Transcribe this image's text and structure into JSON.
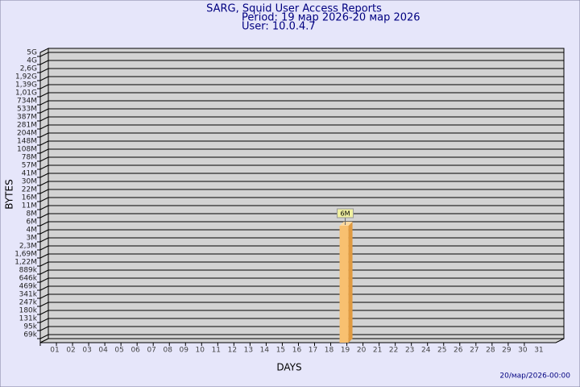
{
  "chart_data": {
    "type": "bar",
    "title": "SARG, Squid User Access Reports",
    "subtitle": [
      "Period: 19 мар 2026-20 мар 2026",
      "User: 10.0.4.7"
    ],
    "y_label": "BYTES",
    "x_label": "DAYS",
    "footer": "20/мар/2026-00:00",
    "categories": [
      "01",
      "02",
      "03",
      "04",
      "05",
      "06",
      "07",
      "08",
      "09",
      "10",
      "11",
      "12",
      "13",
      "14",
      "15",
      "16",
      "17",
      "18",
      "19",
      "20",
      "21",
      "22",
      "23",
      "24",
      "25",
      "26",
      "27",
      "28",
      "29",
      "30",
      "31"
    ],
    "values": [
      null,
      null,
      null,
      null,
      null,
      null,
      null,
      null,
      null,
      null,
      null,
      null,
      null,
      null,
      null,
      null,
      null,
      null,
      6000000,
      null,
      null,
      null,
      null,
      null,
      null,
      null,
      null,
      null,
      null,
      null,
      null
    ],
    "value_labels": [
      null,
      null,
      null,
      null,
      null,
      null,
      null,
      null,
      null,
      null,
      null,
      null,
      null,
      null,
      null,
      null,
      null,
      null,
      "6M",
      null,
      null,
      null,
      null,
      null,
      null,
      null,
      null,
      null,
      null,
      null,
      null
    ],
    "color": "#f8c070",
    "ylim": [
      0,
      5000000000
    ],
    "yticks": [
      {
        "value": 69000,
        "label": "69k"
      },
      {
        "value": 95000,
        "label": "95k"
      },
      {
        "value": 131000,
        "label": "131k"
      },
      {
        "value": 180000,
        "label": "180k"
      },
      {
        "value": 247000,
        "label": "247k"
      },
      {
        "value": 341000,
        "label": "341k"
      },
      {
        "value": 469000,
        "label": "469k"
      },
      {
        "value": 646000,
        "label": "646k"
      },
      {
        "value": 889000,
        "label": "889k"
      },
      {
        "value": 1220000,
        "label": "1,22M"
      },
      {
        "value": 1690000,
        "label": "1,69M"
      },
      {
        "value": 2300000,
        "label": "2,3M"
      },
      {
        "value": 3000000,
        "label": "3M"
      },
      {
        "value": 4000000,
        "label": "4M"
      },
      {
        "value": 6000000,
        "label": "6M"
      },
      {
        "value": 8000000,
        "label": "8M"
      },
      {
        "value": 11000000,
        "label": "11M"
      },
      {
        "value": 16000000,
        "label": "16M"
      },
      {
        "value": 22000000,
        "label": "22M"
      },
      {
        "value": 30000000,
        "label": "30M"
      },
      {
        "value": 41000000,
        "label": "41M"
      },
      {
        "value": 57000000,
        "label": "57M"
      },
      {
        "value": 78000000,
        "label": "78M"
      },
      {
        "value": 108000000,
        "label": "108M"
      },
      {
        "value": 148000000,
        "label": "148M"
      },
      {
        "value": 204000000,
        "label": "204M"
      },
      {
        "value": 281000000,
        "label": "281M"
      },
      {
        "value": 387000000,
        "label": "387M"
      },
      {
        "value": 533000000,
        "label": "533M"
      },
      {
        "value": 734000000,
        "label": "734M"
      },
      {
        "value": 1010000000,
        "label": "1,01G"
      },
      {
        "value": 1390000000,
        "label": "1,39G"
      },
      {
        "value": 1920000000,
        "label": "1,92G"
      },
      {
        "value": 2600000000,
        "label": "2,6G"
      },
      {
        "value": 4000000000,
        "label": "4G"
      },
      {
        "value": 5000000000,
        "label": "5G"
      }
    ],
    "grid": true
  }
}
